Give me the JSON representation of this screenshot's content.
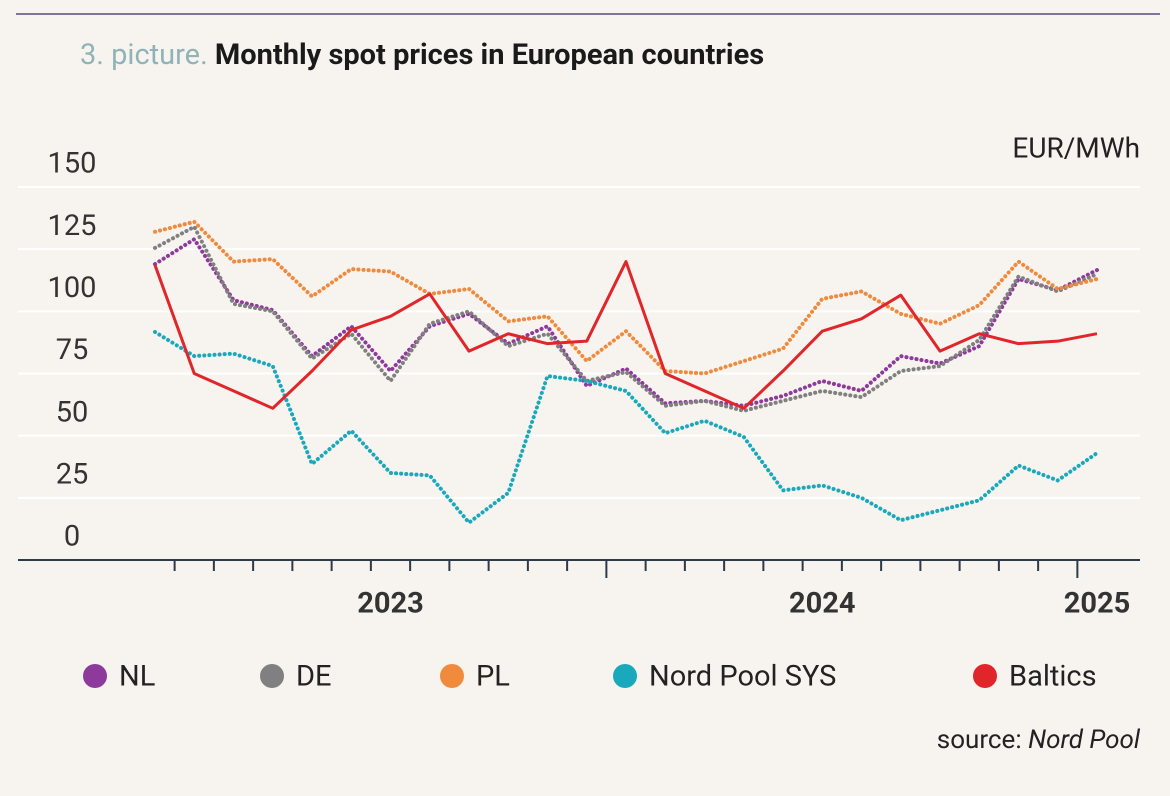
{
  "chart_data": {
    "type": "line",
    "title_prefix": "3. picture.",
    "title": "Monthly spot prices in European countries",
    "y_unit": "EUR/MWh",
    "source_label": "source:",
    "source": "Nord Pool",
    "categories": [
      null,
      null,
      null,
      null,
      null,
      null,
      "2023",
      null,
      null,
      null,
      null,
      null,
      null,
      null,
      null,
      null,
      null,
      "2024",
      null,
      null,
      null,
      null,
      null,
      null,
      "2025"
    ],
    "ylim": [
      0,
      150
    ],
    "yticks": [
      0,
      25,
      50,
      75,
      100,
      125,
      150
    ],
    "grid": true,
    "series": [
      {
        "name": "NL",
        "color": "#8e3a9d",
        "dotted": true,
        "values": [
          119,
          129,
          104.5,
          100.5,
          82,
          94,
          76,
          94,
          99,
          87,
          94,
          70,
          77,
          63,
          64,
          62,
          66,
          72,
          68,
          82,
          79,
          86,
          113,
          108.5,
          116.6
        ]
      },
      {
        "name": "DE",
        "color": "#808080",
        "dotted": true,
        "values": [
          125.5,
          134,
          103,
          100,
          81,
          91,
          72,
          95,
          100,
          86,
          91,
          72,
          75.6,
          62,
          64,
          60,
          64,
          68,
          65.5,
          76,
          78,
          88.5,
          114,
          108,
          115
        ]
      },
      {
        "name": "PL",
        "color": "#f08a3c",
        "dotted": true,
        "values": [
          132,
          136,
          120,
          121,
          106,
          117,
          116,
          107,
          109,
          96,
          98,
          80,
          92,
          76,
          75,
          80,
          85,
          105,
          108,
          99,
          95,
          102.5,
          120,
          109,
          113
        ]
      },
      {
        "name": "Nord Pool SYS",
        "color": "#1aa9bc",
        "dotted": true,
        "values": [
          91.7,
          82,
          83,
          78,
          38.6,
          52,
          35,
          34,
          15,
          27,
          74,
          72,
          68,
          51,
          56,
          49.5,
          28,
          30,
          25,
          16,
          20,
          24,
          38,
          32,
          43
        ]
      },
      {
        "name": "Baltics",
        "color": "#e0262a",
        "dotted": false,
        "values": [
          118.6,
          75,
          68,
          61,
          76,
          92.5,
          98,
          107,
          84,
          91,
          87,
          88,
          120,
          75,
          68,
          61,
          76,
          92,
          97,
          106.5,
          84,
          91,
          87,
          88,
          91
        ]
      }
    ]
  }
}
